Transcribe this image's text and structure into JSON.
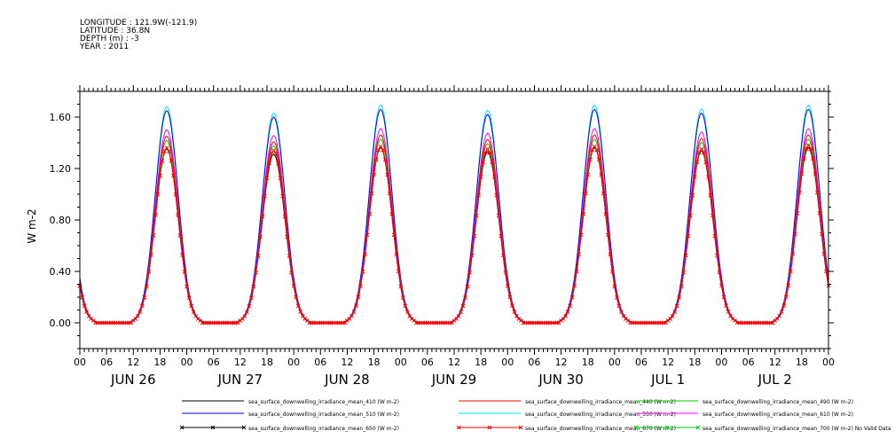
{
  "header": {
    "longitude": "LONGITUDE : 121.9W(-121.9)",
    "latitude": "LATITUDE : 36.8N",
    "depth": "DEPTH (m) : -3",
    "year": "YEAR : 2011"
  },
  "chart_data": {
    "type": "line",
    "ylabel": "W m-2",
    "ylim": [
      -0.2,
      1.8
    ],
    "yticks": [
      "0.00",
      "0.40",
      "0.80",
      "1.20",
      "1.60"
    ],
    "xlim_hours": [
      0,
      168
    ],
    "xticks_hours": [
      "00",
      "06",
      "12",
      "18",
      "00",
      "06",
      "12",
      "18",
      "00",
      "06",
      "12",
      "18",
      "00",
      "06",
      "12",
      "18",
      "00",
      "06",
      "12",
      "18",
      "00",
      "06",
      "12",
      "18",
      "00",
      "06",
      "12",
      "18",
      "00"
    ],
    "days": [
      "JUN 26",
      "JUN 27",
      "JUN 28",
      "JUN 29",
      "JUN 30",
      "JUL  1",
      "JUL  2"
    ],
    "legend": [
      {
        "label": "sea_surface_downwelling_irradiance_mean_410 (W m-2)",
        "color": "#000000"
      },
      {
        "label": "sea_surface_downwelling_irradiance_mean_440 (W m-2)",
        "color": "#ff0000"
      },
      {
        "label": "sea_surface_downwelling_irradiance_mean_490 (W m-2)",
        "color": "#00cc00"
      },
      {
        "label": "sea_surface_downwelling_irradiance_mean_510 (W m-2)",
        "color": "#0000ff"
      },
      {
        "label": "sea_surface_downwelling_irradiance_mean_550 (W m-2)",
        "color": "#00e5e5"
      },
      {
        "label": "sea_surface_downwelling_irradiance_mean_610 (W m-2)",
        "color": "#ff00ff"
      },
      {
        "label": "sea_surface_downwelling_irradiance_mean_650 (W m-2)",
        "color": "#000000",
        "marker": "x"
      },
      {
        "label": "sea_surface_downwelling_irradiance_mean_670 (W m-2)",
        "color": "#ff0000",
        "marker": "x"
      },
      {
        "label": "sea_surface_downwelling_irradiance_mean_700 (W m-2) No Valid Data",
        "color": "#00cc00",
        "marker": "x"
      }
    ],
    "daily_peaks": [
      {
        "day": "JUN 26",
        "peak_510": 1.65,
        "peak_670": 1.36
      },
      {
        "day": "JUN 27",
        "peak_510": 1.6,
        "peak_670": 1.34
      },
      {
        "day": "JUN 28",
        "peak_510": 1.66,
        "peak_670": 1.37
      },
      {
        "day": "JUN 29",
        "peak_510": 1.62,
        "peak_670": 1.35
      },
      {
        "day": "JUN 30",
        "peak_510": 1.66,
        "peak_670": 1.37
      },
      {
        "day": "JUL 1",
        "peak_510": 1.63,
        "peak_670": 1.35
      },
      {
        "day": "JUL 2",
        "peak_510": 1.66,
        "peak_670": 1.38
      }
    ]
  }
}
